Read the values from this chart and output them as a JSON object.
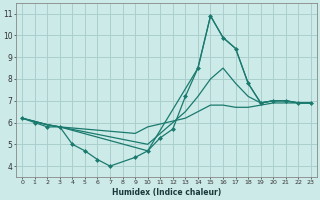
{
  "xlabel": "Humidex (Indice chaleur)",
  "background_color": "#cceae8",
  "grid_color": "#aacfcd",
  "line_color": "#1a7a6e",
  "xlim": [
    -0.5,
    23.5
  ],
  "ylim": [
    3.5,
    11.5
  ],
  "xticks": [
    0,
    1,
    2,
    3,
    4,
    5,
    6,
    7,
    8,
    9,
    10,
    11,
    12,
    13,
    14,
    15,
    16,
    17,
    18,
    19,
    20,
    21,
    22,
    23
  ],
  "yticks": [
    4,
    5,
    6,
    7,
    8,
    9,
    10,
    11
  ],
  "main_series": {
    "x": [
      0,
      1,
      2,
      3,
      4,
      5,
      6,
      7,
      9,
      10,
      11,
      12,
      13,
      14,
      15,
      16,
      17,
      18,
      19,
      20,
      21,
      22,
      23
    ],
    "y": [
      6.2,
      6.0,
      5.8,
      5.8,
      5.0,
      4.7,
      4.3,
      4.0,
      4.4,
      4.7,
      5.3,
      5.7,
      7.2,
      8.5,
      10.9,
      9.9,
      9.4,
      7.8,
      6.9,
      7.0,
      7.0,
      6.9,
      6.9
    ]
  },
  "extra_lines": [
    {
      "x": [
        0,
        2,
        3,
        10,
        14,
        15,
        16,
        17,
        18,
        19,
        20,
        21,
        22,
        23
      ],
      "y": [
        6.2,
        5.9,
        5.8,
        4.7,
        8.5,
        10.9,
        9.9,
        9.4,
        7.8,
        6.9,
        7.0,
        7.0,
        6.9,
        6.9
      ]
    },
    {
      "x": [
        0,
        2,
        3,
        10,
        13,
        14,
        15,
        16,
        17,
        18,
        19,
        20,
        21,
        22,
        23
      ],
      "y": [
        6.2,
        5.9,
        5.8,
        5.0,
        6.5,
        7.2,
        8.0,
        8.5,
        7.8,
        7.2,
        6.9,
        7.0,
        7.0,
        6.9,
        6.9
      ]
    },
    {
      "x": [
        0,
        2,
        3,
        9,
        10,
        13,
        14,
        15,
        16,
        17,
        18,
        19,
        20,
        21,
        22,
        23
      ],
      "y": [
        6.2,
        5.9,
        5.8,
        5.5,
        5.8,
        6.2,
        6.5,
        6.8,
        6.8,
        6.7,
        6.7,
        6.8,
        6.9,
        6.9,
        6.9,
        6.9
      ]
    }
  ]
}
